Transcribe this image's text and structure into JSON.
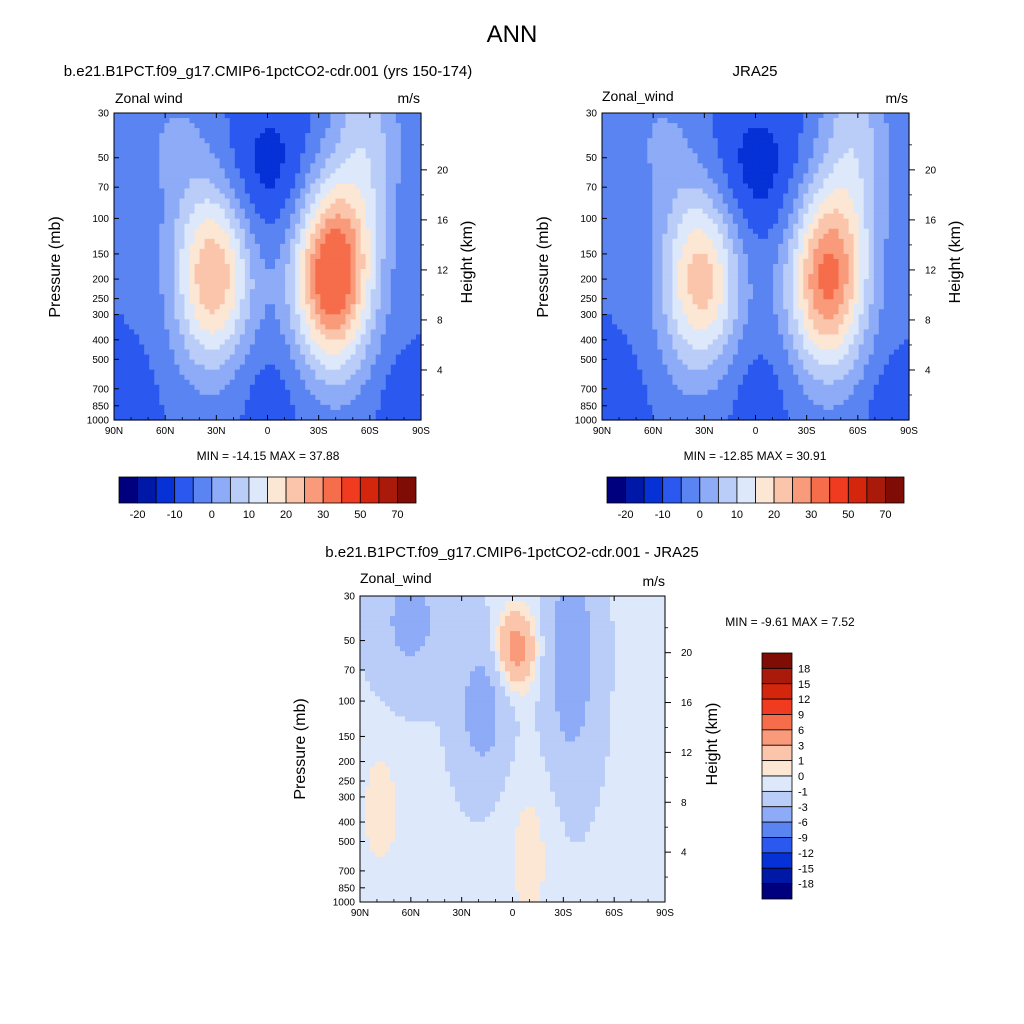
{
  "chart_data": {
    "type": "contour",
    "title": "ANN",
    "panels": [
      {
        "id": "model",
        "title": "b.e21.B1PCT.f09_g17.CMIP6-1pctCO2-cdr.001 (yrs 150-174)",
        "left_label": "Zonal wind",
        "right_label": "m/s",
        "ylabel": "Pressure (mb)",
        "y2label": "Height (km)",
        "x_ticks": [
          "90N",
          "60N",
          "30N",
          "0",
          "30S",
          "60S",
          "90S"
        ],
        "y_ticks": [
          "30",
          "50",
          "70",
          "100",
          "150",
          "200",
          "250",
          "300",
          "400",
          "500",
          "700",
          "850",
          "1000"
        ],
        "y2_ticks": [
          "20",
          "16",
          "12",
          "8",
          "4"
        ],
        "stats": "MIN = -14.15  MAX =  37.88",
        "colorbar_labels": [
          "-20",
          "-10",
          "0",
          "10",
          "20",
          "30",
          "50",
          "70"
        ],
        "colors": [
          "#00007f",
          "#0018a8",
          "#0531d7",
          "#2b59f0",
          "#5a84f2",
          "#8dabf6",
          "#b9cdf8",
          "#dde8fb",
          "#fce6d4",
          "#fbc5ab",
          "#f99a7a",
          "#f66d4b",
          "#f13b20",
          "#d3260d",
          "#aa1a0a",
          "#7f0c05"
        ],
        "jets": [
          {
            "lat": 32,
            "p": 190,
            "u": 24
          },
          {
            "lat": -38,
            "p": 190,
            "u": 36
          }
        ],
        "min": -14.15,
        "max": 37.88
      },
      {
        "id": "obs",
        "title": "JRA25",
        "left_label": "Zonal_wind",
        "right_label": "m/s",
        "ylabel": "Pressure (mb)",
        "y2label": "Height (km)",
        "x_ticks": [
          "90N",
          "60N",
          "30N",
          "0",
          "30S",
          "60S",
          "90S"
        ],
        "y_ticks": [
          "30",
          "50",
          "70",
          "100",
          "150",
          "200",
          "250",
          "300",
          "400",
          "500",
          "700",
          "850",
          "1000"
        ],
        "y2_ticks": [
          "20",
          "16",
          "12",
          "8",
          "4"
        ],
        "stats": "MIN = -12.85  MAX =  30.91",
        "colorbar_labels": [
          "-20",
          "-10",
          "0",
          "10",
          "20",
          "30",
          "50",
          "70"
        ],
        "colors": [
          "#00007f",
          "#0018a8",
          "#0531d7",
          "#2b59f0",
          "#5a84f2",
          "#8dabf6",
          "#b9cdf8",
          "#dde8fb",
          "#fce6d4",
          "#fbc5ab",
          "#f99a7a",
          "#f66d4b",
          "#f13b20",
          "#d3260d",
          "#aa1a0a",
          "#7f0c05"
        ],
        "jets": [
          {
            "lat": 32,
            "p": 200,
            "u": 22
          },
          {
            "lat": -42,
            "p": 200,
            "u": 30
          }
        ],
        "min": -12.85,
        "max": 30.91
      },
      {
        "id": "diff",
        "title": "b.e21.B1PCT.f09_g17.CMIP6-1pctCO2-cdr.001 - JRA25",
        "left_label": "Zonal_wind",
        "right_label": "m/s",
        "ylabel": "Pressure (mb)",
        "y2label": "Height (km)",
        "x_ticks": [
          "90N",
          "60N",
          "30N",
          "0",
          "30S",
          "60S",
          "90S"
        ],
        "y_ticks": [
          "30",
          "50",
          "70",
          "100",
          "150",
          "200",
          "250",
          "300",
          "400",
          "500",
          "700",
          "850",
          "1000"
        ],
        "y2_ticks": [
          "20",
          "16",
          "12",
          "8",
          "4"
        ],
        "stats": "MIN =  -9.61  MAX =   7.52",
        "colorbar_labels": [
          "18",
          "15",
          "12",
          "9",
          "6",
          "3",
          "1",
          "0",
          "-1",
          "-3",
          "-6",
          "-9",
          "-12",
          "-15",
          "-18"
        ],
        "colors": [
          "#7f0c05",
          "#aa1a0a",
          "#d3260d",
          "#f13b20",
          "#f66d4b",
          "#f99a7a",
          "#fbc5ab",
          "#fce6d4",
          "#dde8fb",
          "#b9cdf8",
          "#8dabf6",
          "#5a84f2",
          "#2b59f0",
          "#0531d7",
          "#0018a8",
          "#00007f"
        ],
        "min": -9.61,
        "max": 7.52
      }
    ]
  }
}
